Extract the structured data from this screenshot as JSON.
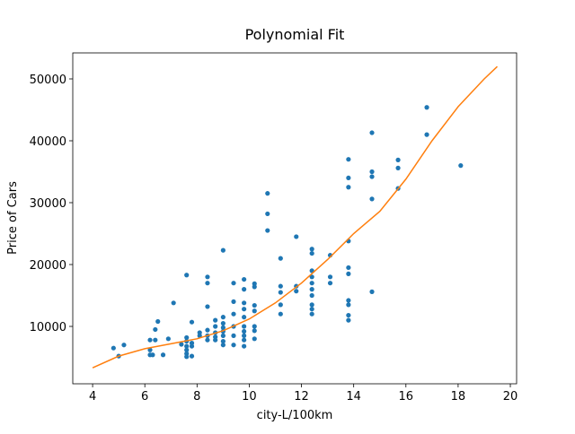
{
  "chart_data": {
    "type": "scatter",
    "title": "Polynomial Fit",
    "x_label": "city-L/100km",
    "y_label": "Price of Cars",
    "xlim": [
      3.24,
      20.24
    ],
    "ylim": [
      727,
      54202
    ],
    "xticks": [
      4,
      6,
      8,
      10,
      12,
      14,
      16,
      18,
      20
    ],
    "yticks": [
      10000,
      20000,
      30000,
      40000,
      50000
    ],
    "grid": false,
    "series": [
      {
        "type": "scatter",
        "color": "#1f77b4",
        "x": [
          4.8,
          5,
          5.2,
          6.2,
          6.2,
          6.2,
          6.3,
          6.4,
          6.4,
          6.5,
          6.7,
          6.9,
          7.1,
          7.4,
          7.6,
          7.6,
          7.6,
          7.6,
          7.6,
          7.6,
          7.6,
          7.8,
          7.8,
          7.8,
          7.8,
          8.1,
          8.1,
          8.4,
          8.4,
          8.4,
          8.4,
          8.4,
          8.4,
          8.7,
          8.7,
          8.7,
          8.7,
          8.7,
          9,
          9,
          9,
          9,
          9,
          9,
          9,
          9,
          9.4,
          9.4,
          9.4,
          9.4,
          9.4,
          9.4,
          9.8,
          9.8,
          9.8,
          9.8,
          9.8,
          9.8,
          9.8,
          9.8,
          9.8,
          9.8,
          10.2,
          10.2,
          10.2,
          10.2,
          10.2,
          10.2,
          10.2,
          10.7,
          10.7,
          10.7,
          11.2,
          11.2,
          11.2,
          11.2,
          11.2,
          11.8,
          11.8,
          11.8,
          12.4,
          12.4,
          12.4,
          12.4,
          12.4,
          12.4,
          12.4,
          12.4,
          12.4,
          12.4,
          13.1,
          13.1,
          13.1,
          13.8,
          13.8,
          13.8,
          13.8,
          13.8,
          13.8,
          13.8,
          13.8,
          13.8,
          13.8,
          14.7,
          14.7,
          14.7,
          14.7,
          14.7,
          15.7,
          15.7,
          15.7,
          16.8,
          16.8,
          18.1
        ],
        "values": [
          6500,
          5200,
          7000,
          7800,
          6200,
          5400,
          5400,
          9500,
          7800,
          10800,
          5400,
          8000,
          13800,
          7100,
          18300,
          8200,
          7600,
          6800,
          6200,
          5600,
          5100,
          10700,
          7300,
          6800,
          5200,
          8500,
          9000,
          18000,
          17000,
          13200,
          9400,
          8500,
          7800,
          11000,
          10000,
          9000,
          8300,
          7800,
          22300,
          11500,
          10500,
          9800,
          9200,
          8500,
          7600,
          7000,
          17000,
          14000,
          12000,
          10000,
          8500,
          7000,
          17600,
          16000,
          13800,
          12800,
          11500,
          10000,
          9200,
          8500,
          7800,
          6800,
          16900,
          16400,
          13400,
          12500,
          10000,
          9300,
          8000,
          31500,
          28200,
          25500,
          21000,
          16500,
          15500,
          13500,
          12000,
          24500,
          16500,
          15700,
          22500,
          21800,
          19000,
          18000,
          17000,
          16000,
          15000,
          13500,
          12800,
          12000,
          21500,
          18000,
          17000,
          37000,
          34000,
          32500,
          23800,
          19500,
          18500,
          14200,
          13500,
          11800,
          11000,
          41300,
          35000,
          34200,
          30600,
          15600,
          36900,
          35600,
          32300,
          45400,
          41000,
          36000
        ]
      },
      {
        "type": "line",
        "color": "#ff7f0e",
        "x": [
          4,
          5,
          6,
          7,
          8,
          9,
          10,
          11,
          12,
          13,
          14,
          15,
          16,
          17,
          18,
          19,
          19.5
        ],
        "values": [
          3300,
          5200,
          6400,
          7200,
          8000,
          9300,
          11200,
          13800,
          17000,
          20800,
          25000,
          28600,
          33800,
          40000,
          45500,
          50000,
          52000
        ]
      }
    ]
  }
}
